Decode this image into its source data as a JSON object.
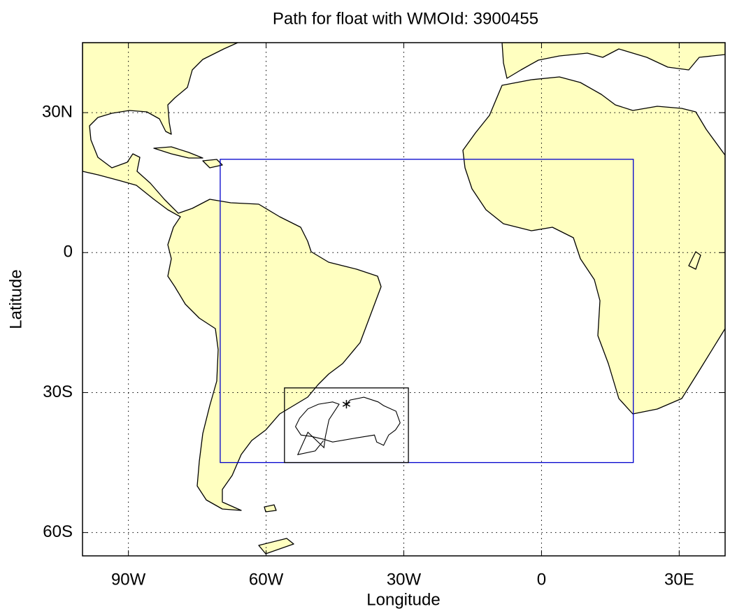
{
  "chart_data": {
    "type": "map",
    "title": "Path for float with WMOId: 3900455",
    "xlabel": "Longitude",
    "ylabel": "Latitude",
    "xlim": [
      -100,
      40
    ],
    "ylim": [
      -65,
      45
    ],
    "xticks": [
      {
        "value": -90,
        "label": "90W"
      },
      {
        "value": -60,
        "label": "60W"
      },
      {
        "value": -30,
        "label": "30W"
      },
      0,
      {
        "value": 30,
        "label": "30E"
      }
    ],
    "yticks": [
      {
        "value": -60,
        "label": "60S"
      },
      {
        "value": -30,
        "label": "30S"
      },
      0,
      {
        "value": 30,
        "label": "30N"
      }
    ],
    "grid": true,
    "land_color": "#ffffc0",
    "boxes": [
      {
        "lon": [
          -70,
          20
        ],
        "lat": [
          -45,
          20
        ],
        "color": "#0000cc"
      },
      {
        "lon": [
          -56,
          -29
        ],
        "lat": [
          -45,
          -29
        ],
        "color": "#000000"
      }
    ],
    "track": {
      "color": "#000000",
      "x": [
        -42.5,
        -41.7,
        -38.7,
        -35.6,
        -34.4,
        -31.7,
        -30.8,
        -31.8,
        -33.3,
        -34.4,
        -35.9,
        -36.4,
        -40.2,
        -45.5,
        -47.5,
        -50.1,
        -52.4,
        -53.6,
        -52.7,
        -50.9,
        -48.6,
        -45.5,
        -44.1,
        -46.3,
        -47.1,
        -47.4,
        -50.9,
        -53.1,
        -49.3,
        -47.5
      ],
      "y": [
        -32.5,
        -31.6,
        -31.0,
        -32.0,
        -32.8,
        -34.0,
        -36.5,
        -38.0,
        -39.1,
        -41.3,
        -40.6,
        -39.1,
        -39.7,
        -40.6,
        -40.0,
        -39.4,
        -39.1,
        -37.3,
        -35.5,
        -33.5,
        -32.5,
        -32.0,
        -32.5,
        -35.8,
        -39.5,
        -41.8,
        -38.5,
        -43.3,
        -42.5,
        -40.3
      ]
    }
  }
}
